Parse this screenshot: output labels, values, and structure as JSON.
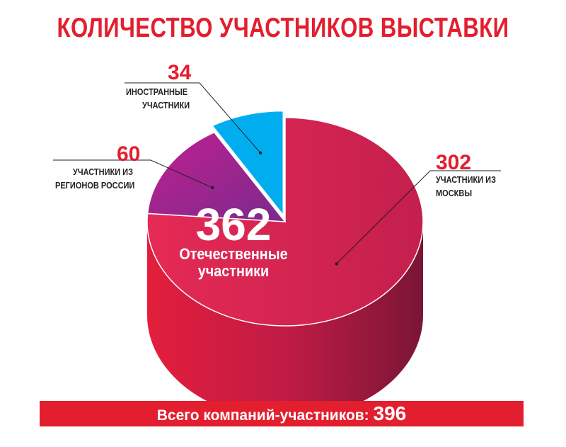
{
  "title": "КОЛИЧЕСТВО УЧАСТНИКОВ ВЫСТАВКИ",
  "chart_data": {
    "type": "pie",
    "slices": [
      {
        "value": 302,
        "label": "УЧАСТНИКИ ИЗ МОСКВЫ",
        "label_lines": [
          "УЧАСТНИКИ ИЗ",
          "МОСКВЫ"
        ],
        "color": "#c41f4d"
      },
      {
        "value": 60,
        "label": "УЧАСТНИКИ ИЗ РЕГИОНОВ РОССИИ",
        "label_lines": [
          "УЧАСТНИКИ ИЗ",
          "РЕГИОНОВ РОССИИ"
        ],
        "color": "#a81e8f"
      },
      {
        "value": 34,
        "label": "ИНОСТРАННЫЕ УЧАСТНИКИ",
        "label_lines": [
          "ИНОСТРАННЫЕ",
          "УЧАСТНИКИ"
        ],
        "color": "#00aeef"
      }
    ],
    "domestic_total": {
      "value": 362,
      "label": "Отечественные участники",
      "label_lines": [
        "Отечественные",
        "участники"
      ]
    },
    "total": {
      "label": "Всего компаний-участников:",
      "value": 396
    }
  }
}
